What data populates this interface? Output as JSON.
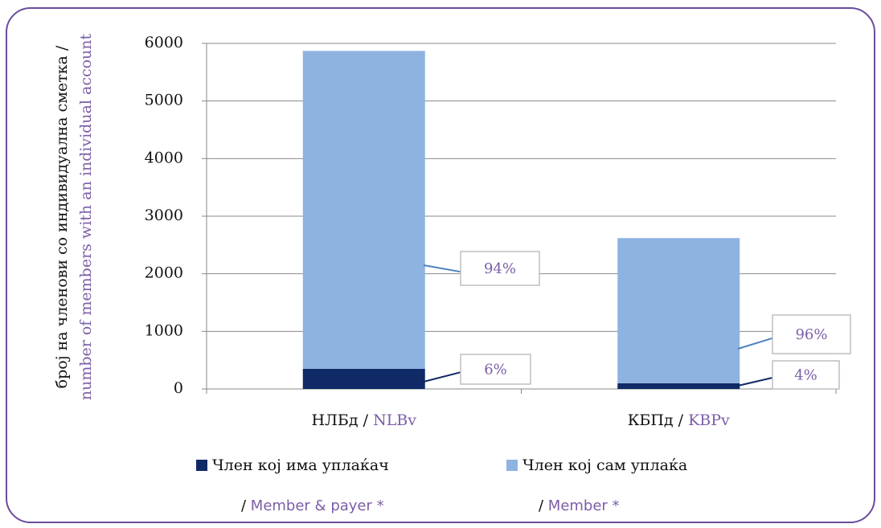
{
  "chart_data": {
    "type": "stacked_bar",
    "ylabel": [
      "број на членови со индивидуална сметка /",
      "number of members with an individual account"
    ],
    "categories": [
      "НЛБд / NLBv",
      "КБПд / KBPv"
    ],
    "series": [
      {
        "name": "Член кој има уплаќач",
        "name_en": "/ Member & payer *",
        "color": "#0f2a66",
        "values": [
          350,
          100
        ],
        "labels": [
          "6%",
          "4%"
        ]
      },
      {
        "name": "Член кој сам уплаќа",
        "name_en": "/ Member *",
        "color": "#8eb3e1",
        "values": [
          5520,
          2520
        ],
        "labels": [
          "94%",
          "96%"
        ]
      }
    ],
    "ylim": [
      0,
      6000
    ],
    "yticks": [
      0,
      1000,
      2000,
      3000,
      4000,
      5000,
      6000
    ],
    "grid": true
  }
}
